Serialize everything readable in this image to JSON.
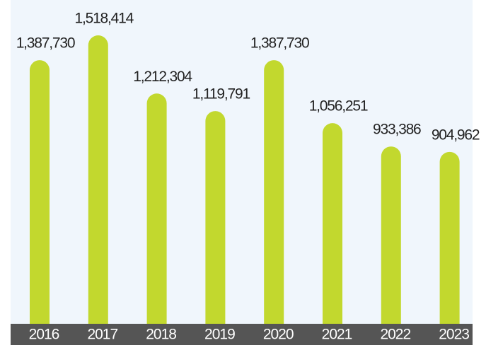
{
  "chart_data": {
    "type": "bar",
    "categories": [
      "2016",
      "2017",
      "2018",
      "2019",
      "2020",
      "2021",
      "2022",
      "2023"
    ],
    "values": [
      1387730,
      1518414,
      1212304,
      1119791,
      1387730,
      1056251,
      933386,
      904962
    ],
    "value_labels": [
      "1,387,730",
      "1,518,414",
      "1,212,304",
      "1,119,791",
      "1,387,730",
      "1,056,251",
      "933,386",
      "904,962"
    ],
    "color": "#c2d82e"
  }
}
